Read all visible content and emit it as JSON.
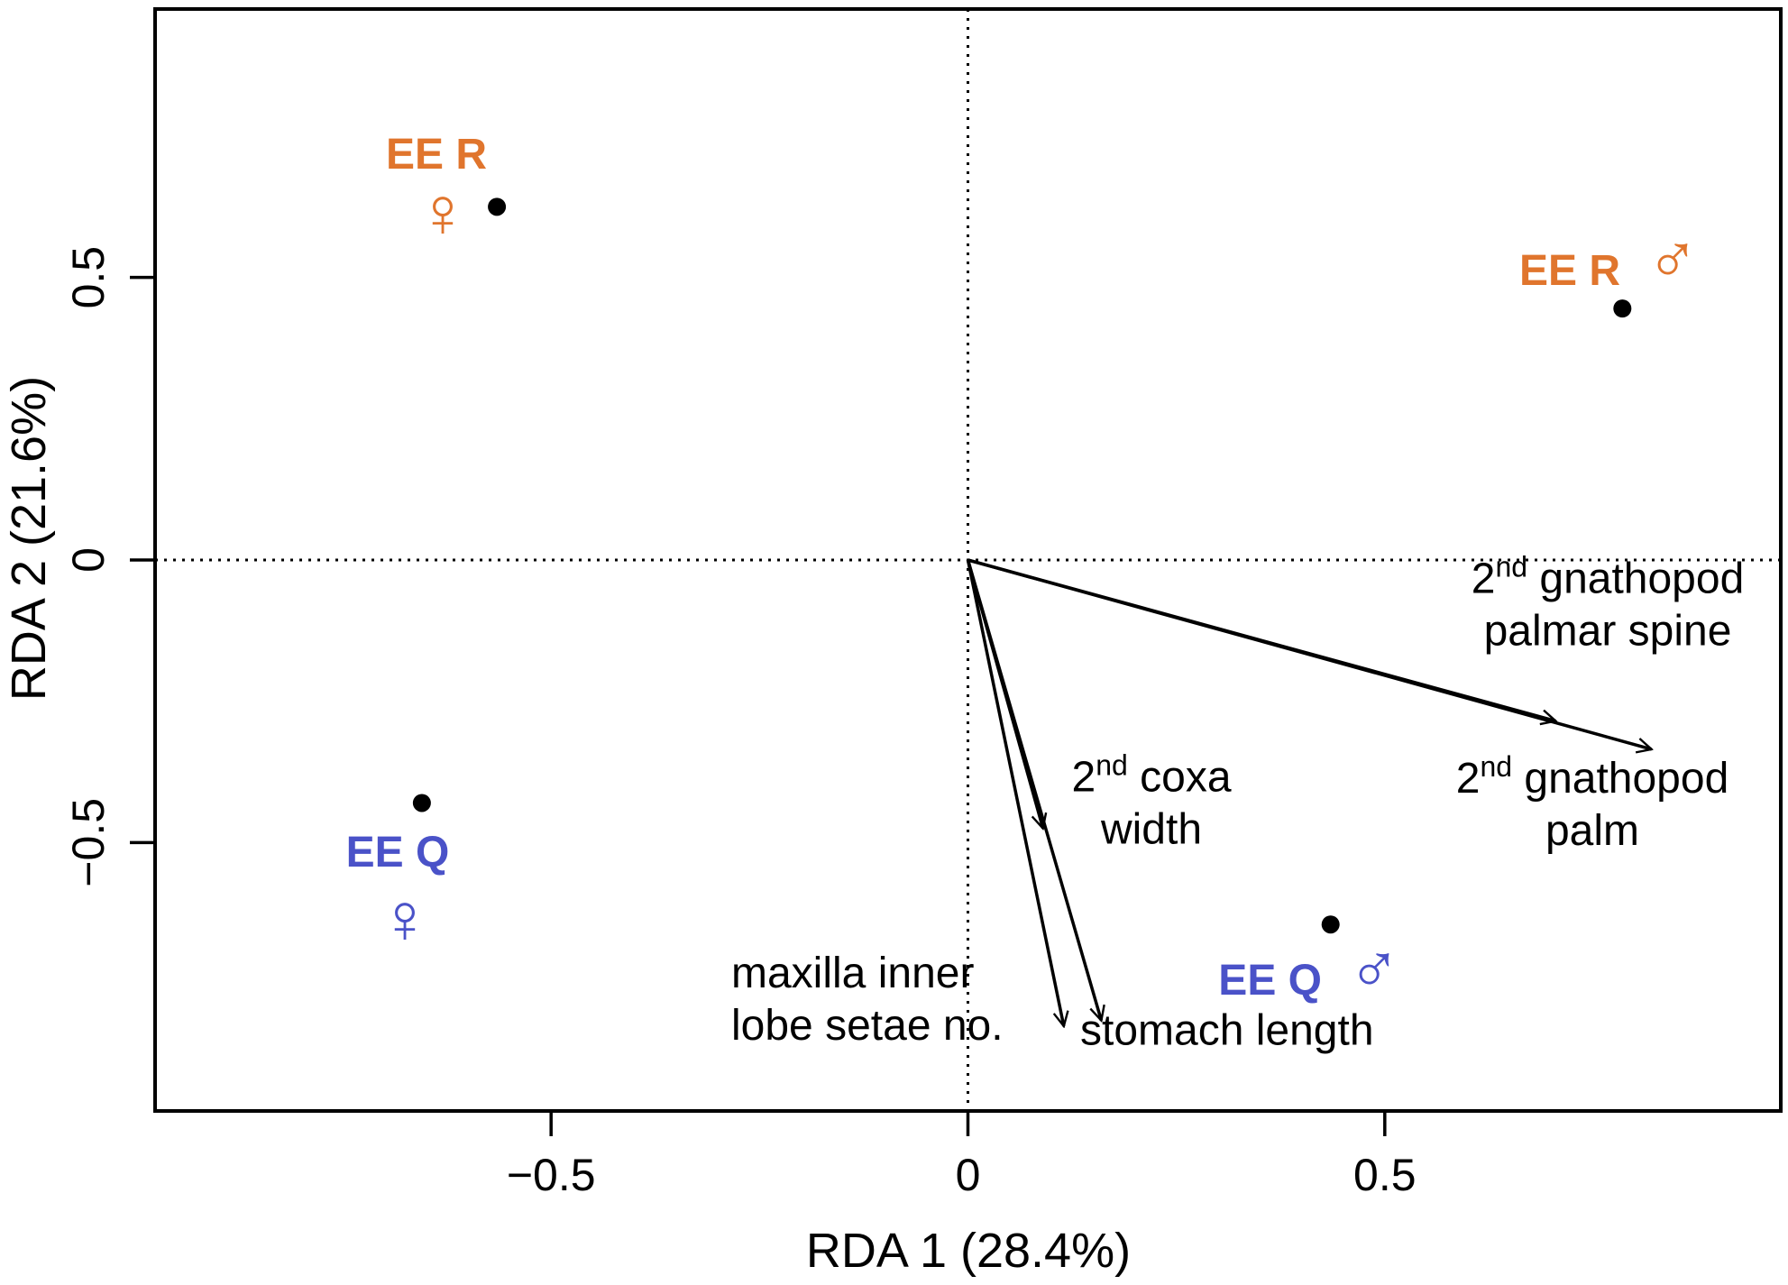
{
  "chart_data": {
    "type": "scatter",
    "xlabel": "RDA 1 (28.4%)",
    "ylabel": "RDA 2 (21.6%)",
    "xlim": [
      -0.975,
      0.975
    ],
    "ylim": [
      -0.975,
      0.975
    ],
    "xticks": [
      -0.5,
      0,
      0.5
    ],
    "yticks": [
      -0.5,
      0,
      0.5
    ],
    "xtick_labels": [
      "−0.5",
      "0",
      "0.5"
    ],
    "ytick_labels": [
      "−0.5",
      "0",
      "0.5"
    ],
    "zero_lines": true,
    "grid": false,
    "colors": {
      "EE R": "#e0752d",
      "EE Q": "#4a52c8",
      "arrows": "#000000",
      "points": "#000000"
    },
    "points": [
      {
        "group": "EE R",
        "sex": "female",
        "symbol": "♀",
        "x": -0.565,
        "y": 0.625
      },
      {
        "group": "EE R",
        "sex": "male",
        "symbol": "♂",
        "x": 0.785,
        "y": 0.445
      },
      {
        "group": "EE Q",
        "sex": "female",
        "symbol": "♀",
        "x": -0.655,
        "y": -0.43
      },
      {
        "group": "EE Q",
        "sex": "male",
        "symbol": "♂",
        "x": 0.435,
        "y": -0.645
      }
    ],
    "arrows": [
      {
        "lines": [
          {
            "sup": "2",
            "sup_suffix": "nd",
            "text": " gnathopod"
          },
          {
            "text": "palmar spine"
          }
        ],
        "x": 0.705,
        "y": -0.285
      },
      {
        "lines": [
          {
            "sup": "2",
            "sup_suffix": "nd",
            "text": " gnathopod"
          },
          {
            "text": "palm"
          }
        ],
        "x": 0.82,
        "y": -0.335
      },
      {
        "lines": [
          {
            "sup": "2",
            "sup_suffix": "nd",
            "text": " coxa"
          },
          {
            "text": "width"
          }
        ],
        "x": 0.09,
        "y": -0.475
      },
      {
        "lines": [
          {
            "text": "maxilla inner"
          },
          {
            "text": "lobe setae no."
          }
        ],
        "x": 0.115,
        "y": -0.825
      },
      {
        "lines": [
          {
            "text": "stomach length"
          }
        ],
        "x": 0.16,
        "y": -0.815
      }
    ]
  }
}
